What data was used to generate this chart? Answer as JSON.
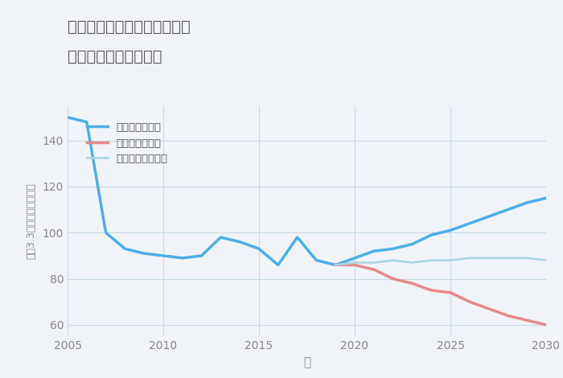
{
  "title_line1": "福岡県北九州市門司区栄町の",
  "title_line2": "中古戸建ての価格推移",
  "xlabel": "年",
  "ylabel": "坪（3.3㎡）単価（万円）",
  "background_color": "#f0f4f8",
  "plot_bg_color": "#f0f4f8",
  "ylim": [
    55,
    155
  ],
  "xlim": [
    2005,
    2030
  ],
  "yticks": [
    60,
    80,
    100,
    120,
    140
  ],
  "xticks": [
    2005,
    2010,
    2015,
    2020,
    2025,
    2030
  ],
  "good_scenario": {
    "label": "グッドシナリオ",
    "color": "#4baee8",
    "linewidth": 2.5,
    "x": [
      2005,
      2006,
      2007,
      2008,
      2009,
      2010,
      2011,
      2012,
      2013,
      2014,
      2015,
      2016,
      2017,
      2018,
      2019,
      2020,
      2021,
      2022,
      2023,
      2024,
      2025,
      2026,
      2027,
      2028,
      2029,
      2030
    ],
    "y": [
      150,
      148,
      100,
      93,
      91,
      90,
      89,
      90,
      98,
      96,
      93,
      86,
      98,
      88,
      86,
      89,
      92,
      93,
      95,
      99,
      101,
      104,
      107,
      110,
      113,
      115
    ]
  },
  "bad_scenario": {
    "label": "バッドシナリオ",
    "color": "#e8888a",
    "linewidth": 2.5,
    "x": [
      2019,
      2020,
      2021,
      2022,
      2023,
      2024,
      2025,
      2026,
      2027,
      2028,
      2029,
      2030
    ],
    "y": [
      86,
      86,
      84,
      80,
      78,
      75,
      74,
      70,
      67,
      64,
      62,
      60
    ]
  },
  "normal_scenario": {
    "label": "ノーマルシナリオ",
    "color": "#a8d4e8",
    "linewidth": 1.8,
    "x": [
      2019,
      2020,
      2021,
      2022,
      2023,
      2024,
      2025,
      2026,
      2027,
      2028,
      2029,
      2030
    ],
    "y": [
      86,
      87,
      87,
      88,
      87,
      88,
      88,
      89,
      89,
      89,
      89,
      88
    ]
  },
  "grid_color": "#c8d8e8",
  "title_color": "#555555",
  "label_color": "#888888",
  "tick_color": "#888888"
}
